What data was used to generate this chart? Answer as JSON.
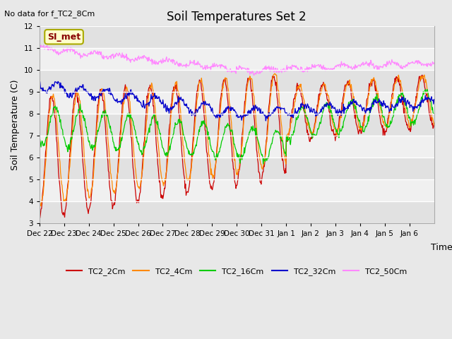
{
  "title": "Soil Temperatures Set 2",
  "subtitle": "No data for f_TC2_8Cm",
  "xlabel": "Time",
  "ylabel": "Soil Temperature (C)",
  "ylim": [
    3.0,
    12.0
  ],
  "yticks": [
    3.0,
    4.0,
    5.0,
    6.0,
    7.0,
    8.0,
    9.0,
    10.0,
    11.0,
    12.0
  ],
  "colors": {
    "TC2_2Cm": "#cc0000",
    "TC2_4Cm": "#ff8800",
    "TC2_16Cm": "#00cc00",
    "TC2_32Cm": "#0000cc",
    "TC2_50Cm": "#ff88ff"
  },
  "legend_labels": [
    "TC2_2Cm",
    "TC2_4Cm",
    "TC2_16Cm",
    "TC2_32Cm",
    "TC2_50Cm"
  ],
  "watermark": "SI_met",
  "background_color": "#e8e8e8",
  "plot_bg_color": "#f0f0f0",
  "n_days": 16,
  "xtick_labels": [
    "Dec 22",
    "Dec 23",
    "Dec 24",
    "Dec 25",
    "Dec 26",
    "Dec 27",
    "Dec 28",
    "Dec 29",
    "Dec 30",
    "Dec 31",
    "Jan 1",
    "Jan 2",
    "Jan 3",
    "Jan 4",
    "Jan 5",
    "Jan 6"
  ]
}
